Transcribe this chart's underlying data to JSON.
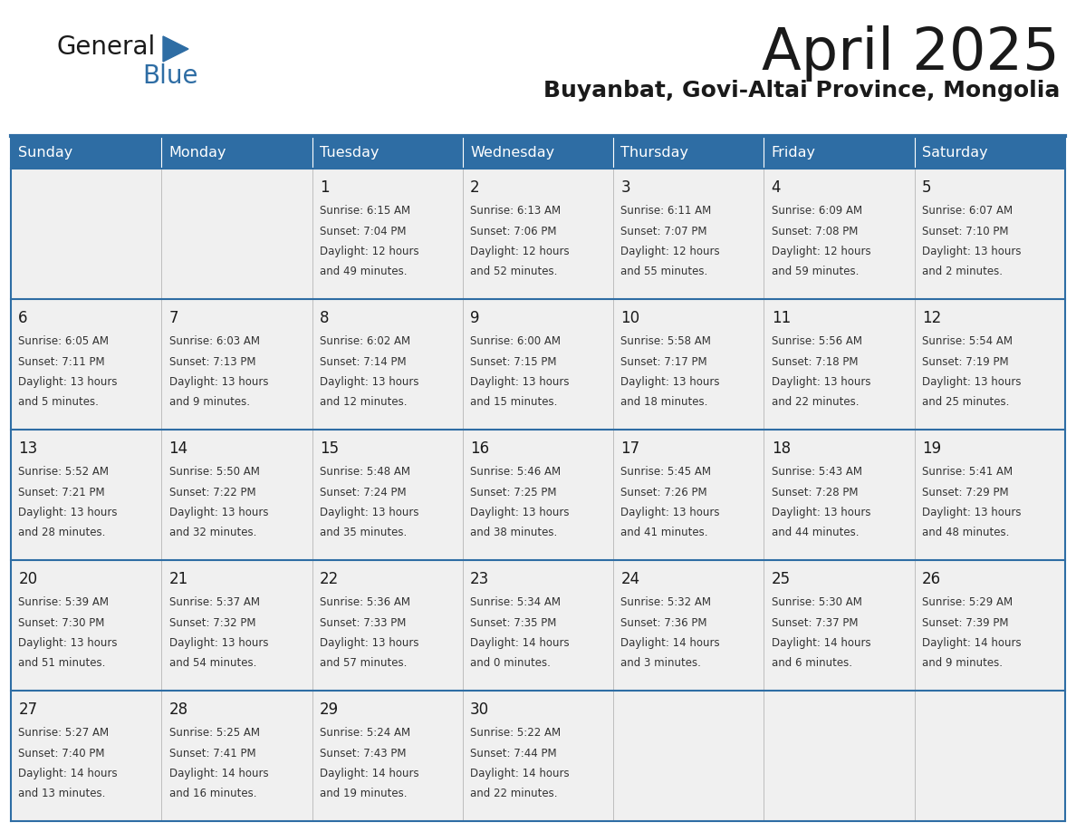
{
  "title": "April 2025",
  "subtitle": "Buyanbat, Govi-Altai Province, Mongolia",
  "days_of_week": [
    "Sunday",
    "Monday",
    "Tuesday",
    "Wednesday",
    "Thursday",
    "Friday",
    "Saturday"
  ],
  "header_bg": "#2E6DA4",
  "header_text": "#FFFFFF",
  "cell_bg": "#F0F0F0",
  "cell_border_color": "#2E6DA4",
  "row_divider_color": "#2E6DA4",
  "title_color": "#1a1a1a",
  "subtitle_color": "#1a1a1a",
  "day_number_color": "#1a1a1a",
  "cell_text_color": "#333333",
  "logo_text_color": "#1a1a1a",
  "logo_blue_color": "#2E6DA4",
  "calendar": [
    [
      {
        "day": null,
        "info": null
      },
      {
        "day": null,
        "info": null
      },
      {
        "day": 1,
        "info": "Sunrise: 6:15 AM\nSunset: 7:04 PM\nDaylight: 12 hours\nand 49 minutes."
      },
      {
        "day": 2,
        "info": "Sunrise: 6:13 AM\nSunset: 7:06 PM\nDaylight: 12 hours\nand 52 minutes."
      },
      {
        "day": 3,
        "info": "Sunrise: 6:11 AM\nSunset: 7:07 PM\nDaylight: 12 hours\nand 55 minutes."
      },
      {
        "day": 4,
        "info": "Sunrise: 6:09 AM\nSunset: 7:08 PM\nDaylight: 12 hours\nand 59 minutes."
      },
      {
        "day": 5,
        "info": "Sunrise: 6:07 AM\nSunset: 7:10 PM\nDaylight: 13 hours\nand 2 minutes."
      }
    ],
    [
      {
        "day": 6,
        "info": "Sunrise: 6:05 AM\nSunset: 7:11 PM\nDaylight: 13 hours\nand 5 minutes."
      },
      {
        "day": 7,
        "info": "Sunrise: 6:03 AM\nSunset: 7:13 PM\nDaylight: 13 hours\nand 9 minutes."
      },
      {
        "day": 8,
        "info": "Sunrise: 6:02 AM\nSunset: 7:14 PM\nDaylight: 13 hours\nand 12 minutes."
      },
      {
        "day": 9,
        "info": "Sunrise: 6:00 AM\nSunset: 7:15 PM\nDaylight: 13 hours\nand 15 minutes."
      },
      {
        "day": 10,
        "info": "Sunrise: 5:58 AM\nSunset: 7:17 PM\nDaylight: 13 hours\nand 18 minutes."
      },
      {
        "day": 11,
        "info": "Sunrise: 5:56 AM\nSunset: 7:18 PM\nDaylight: 13 hours\nand 22 minutes."
      },
      {
        "day": 12,
        "info": "Sunrise: 5:54 AM\nSunset: 7:19 PM\nDaylight: 13 hours\nand 25 minutes."
      }
    ],
    [
      {
        "day": 13,
        "info": "Sunrise: 5:52 AM\nSunset: 7:21 PM\nDaylight: 13 hours\nand 28 minutes."
      },
      {
        "day": 14,
        "info": "Sunrise: 5:50 AM\nSunset: 7:22 PM\nDaylight: 13 hours\nand 32 minutes."
      },
      {
        "day": 15,
        "info": "Sunrise: 5:48 AM\nSunset: 7:24 PM\nDaylight: 13 hours\nand 35 minutes."
      },
      {
        "day": 16,
        "info": "Sunrise: 5:46 AM\nSunset: 7:25 PM\nDaylight: 13 hours\nand 38 minutes."
      },
      {
        "day": 17,
        "info": "Sunrise: 5:45 AM\nSunset: 7:26 PM\nDaylight: 13 hours\nand 41 minutes."
      },
      {
        "day": 18,
        "info": "Sunrise: 5:43 AM\nSunset: 7:28 PM\nDaylight: 13 hours\nand 44 minutes."
      },
      {
        "day": 19,
        "info": "Sunrise: 5:41 AM\nSunset: 7:29 PM\nDaylight: 13 hours\nand 48 minutes."
      }
    ],
    [
      {
        "day": 20,
        "info": "Sunrise: 5:39 AM\nSunset: 7:30 PM\nDaylight: 13 hours\nand 51 minutes."
      },
      {
        "day": 21,
        "info": "Sunrise: 5:37 AM\nSunset: 7:32 PM\nDaylight: 13 hours\nand 54 minutes."
      },
      {
        "day": 22,
        "info": "Sunrise: 5:36 AM\nSunset: 7:33 PM\nDaylight: 13 hours\nand 57 minutes."
      },
      {
        "day": 23,
        "info": "Sunrise: 5:34 AM\nSunset: 7:35 PM\nDaylight: 14 hours\nand 0 minutes."
      },
      {
        "day": 24,
        "info": "Sunrise: 5:32 AM\nSunset: 7:36 PM\nDaylight: 14 hours\nand 3 minutes."
      },
      {
        "day": 25,
        "info": "Sunrise: 5:30 AM\nSunset: 7:37 PM\nDaylight: 14 hours\nand 6 minutes."
      },
      {
        "day": 26,
        "info": "Sunrise: 5:29 AM\nSunset: 7:39 PM\nDaylight: 14 hours\nand 9 minutes."
      }
    ],
    [
      {
        "day": 27,
        "info": "Sunrise: 5:27 AM\nSunset: 7:40 PM\nDaylight: 14 hours\nand 13 minutes."
      },
      {
        "day": 28,
        "info": "Sunrise: 5:25 AM\nSunset: 7:41 PM\nDaylight: 14 hours\nand 16 minutes."
      },
      {
        "day": 29,
        "info": "Sunrise: 5:24 AM\nSunset: 7:43 PM\nDaylight: 14 hours\nand 19 minutes."
      },
      {
        "day": 30,
        "info": "Sunrise: 5:22 AM\nSunset: 7:44 PM\nDaylight: 14 hours\nand 22 minutes."
      },
      {
        "day": null,
        "info": null
      },
      {
        "day": null,
        "info": null
      },
      {
        "day": null,
        "info": null
      }
    ]
  ]
}
